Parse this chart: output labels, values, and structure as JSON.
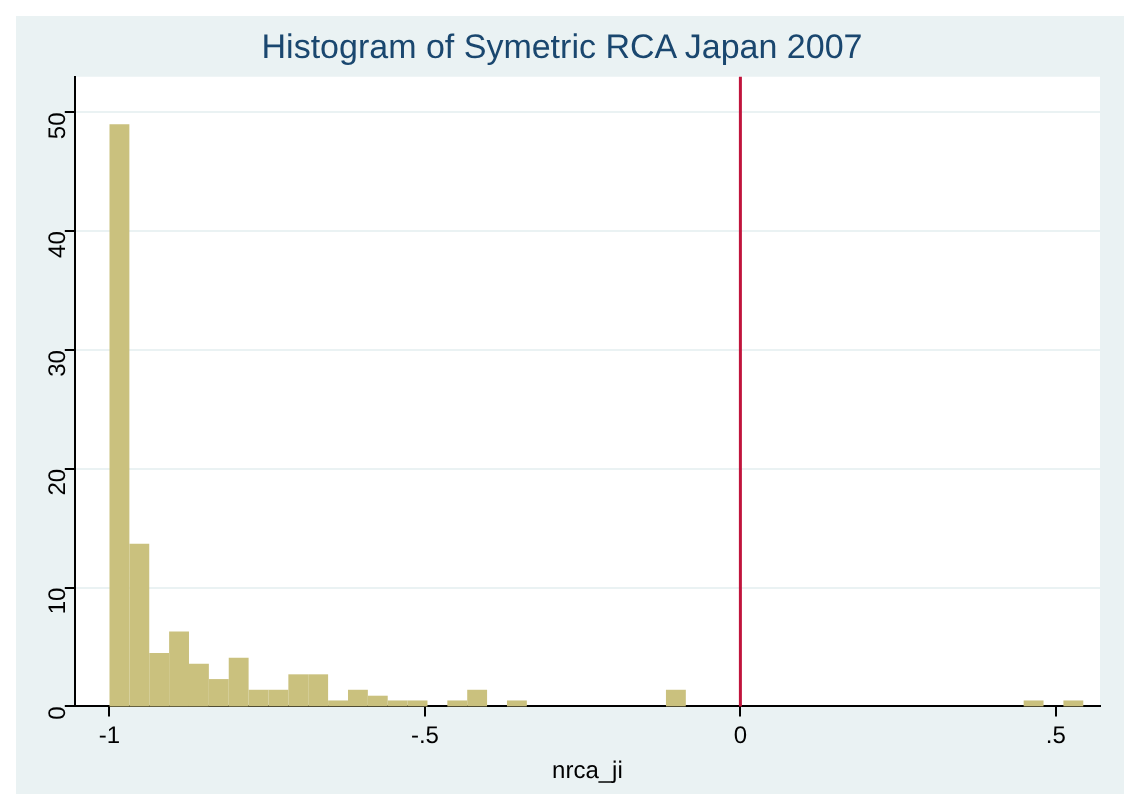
{
  "chart_data": {
    "type": "histogram",
    "title": "Histogram of Symetric RCA Japan 2007",
    "xlabel": "nrca_ji",
    "bins": [
      -1,
      -0.9685,
      -0.937,
      -0.9055,
      -0.874,
      -0.8425,
      -0.811,
      -0.7795,
      -0.748,
      -0.7165,
      -0.685,
      -0.6535,
      -0.622,
      -0.5905,
      -0.559,
      -0.5275,
      -0.496,
      -0.4645,
      -0.433,
      -0.4015,
      -0.37,
      -0.3385,
      -0.307,
      -0.2755,
      -0.244,
      -0.2125,
      -0.181,
      -0.1495,
      -0.118,
      -0.0865,
      -0.055,
      -0.0235,
      0.008,
      0.0395,
      0.071,
      0.1025,
      0.134,
      0.1655,
      0.197,
      0.2285,
      0.26,
      0.2915,
      0.323,
      0.3545,
      0.386,
      0.4175,
      0.449,
      0.4805,
      0.512,
      0.5435
    ],
    "values": [
      49,
      13.7,
      4.5,
      6.3,
      3.6,
      2.3,
      4.1,
      1.4,
      1.4,
      2.7,
      2.7,
      0.5,
      1.4,
      0.9,
      0.5,
      0.5,
      0,
      0.5,
      1.4,
      0,
      0.5,
      0,
      0,
      0,
      0,
      0,
      0,
      0,
      1.4,
      0,
      0,
      0,
      0,
      0,
      0,
      0,
      0,
      0,
      0,
      0,
      0,
      0,
      0,
      0,
      0,
      0,
      0.5,
      0,
      0.5
    ],
    "color": "#cac17e",
    "xlim": [
      -1.055,
      0.57
    ],
    "xticks": [
      -1,
      {
        "value": -0.5,
        "label": "-.5"
      },
      0,
      {
        "value": 0.5,
        "label": ".5"
      }
    ],
    "ylim": [
      0,
      53
    ],
    "yticks": [
      0,
      10,
      20,
      30,
      40,
      50
    ],
    "grid": "y",
    "ref_lines": [
      {
        "axis": "x",
        "value": 0,
        "color": "#c0143c"
      }
    ]
  }
}
